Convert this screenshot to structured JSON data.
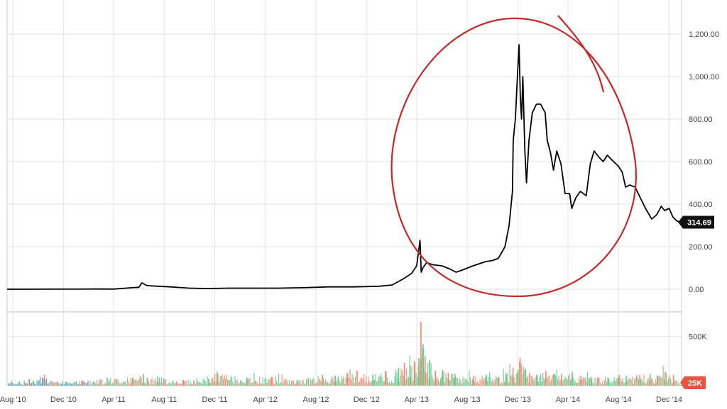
{
  "chart_data": [
    {
      "type": "line",
      "title": "",
      "xlabel": "",
      "ylabel": "",
      "ylim": [
        0,
        1200
      ],
      "grid": true,
      "x_ticks": [
        "Aug '10",
        "Dec '10",
        "Apr '11",
        "Aug '11",
        "Dec '11",
        "Apr '12",
        "Aug '12",
        "Dec '12",
        "Apr '13",
        "Aug '13",
        "Dec '13",
        "Apr '14",
        "Aug '14",
        "Dec '14"
      ],
      "y_ticks": [
        "0.00",
        "200.00",
        "400.00",
        "600.00",
        "800.00",
        "1,000.00",
        "1,200.00"
      ],
      "last_value_label": "314.69",
      "colors": {
        "line": "#000000",
        "last_label_bg": "#111111",
        "annotation": "#c62828"
      },
      "series": [
        {
          "x": [
            "2010-07-18",
            "2010-09-01",
            "2010-11-01",
            "2011-01-01",
            "2011-02-15",
            "2011-04-01",
            "2011-05-15",
            "2011-06-01",
            "2011-06-08",
            "2011-06-20",
            "2011-07-15",
            "2011-08-15",
            "2011-10-01",
            "2011-11-15",
            "2012-01-01",
            "2012-03-01",
            "2012-05-01",
            "2012-07-01",
            "2012-09-01",
            "2012-11-01",
            "2013-01-01",
            "2013-02-01",
            "2013-03-01",
            "2013-03-20",
            "2013-04-01",
            "2013-04-09",
            "2013-04-12",
            "2013-04-16",
            "2013-04-25",
            "2013-05-10",
            "2013-06-01",
            "2013-06-20",
            "2013-07-05",
            "2013-07-20",
            "2013-08-15",
            "2013-09-15",
            "2013-10-01",
            "2013-10-15",
            "2013-10-31",
            "2013-11-10",
            "2013-11-18",
            "2013-11-20",
            "2013-11-25",
            "2013-11-30",
            "2013-12-04",
            "2013-12-07",
            "2013-12-10",
            "2013-12-13",
            "2013-12-18",
            "2013-12-22",
            "2013-12-28",
            "2014-01-05",
            "2014-01-15",
            "2014-01-25",
            "2014-02-05",
            "2014-02-10",
            "2014-02-18",
            "2014-02-25",
            "2014-03-05",
            "2014-03-15",
            "2014-03-25",
            "2014-04-05",
            "2014-04-10",
            "2014-04-20",
            "2014-05-01",
            "2014-05-15",
            "2014-05-25",
            "2014-06-03",
            "2014-06-15",
            "2014-06-25",
            "2014-07-05",
            "2014-07-20",
            "2014-07-31",
            "2014-08-10",
            "2014-08-18",
            "2014-08-28",
            "2014-09-10",
            "2014-09-20",
            "2014-10-05",
            "2014-10-20",
            "2014-11-01",
            "2014-11-12",
            "2014-11-20",
            "2014-12-01",
            "2014-12-10",
            "2014-12-20",
            "2014-12-31"
          ],
          "y": [
            0.05,
            0.06,
            0.2,
            0.3,
            1.0,
            0.8,
            7,
            9,
            30,
            17,
            14,
            11,
            5,
            3,
            5,
            5,
            5,
            7,
            11,
            11,
            14,
            20,
            50,
            75,
            110,
            230,
            80,
            100,
            125,
            115,
            110,
            95,
            80,
            90,
            110,
            130,
            135,
            145,
            200,
            300,
            460,
            700,
            800,
            1000,
            1150,
            900,
            800,
            1000,
            650,
            500,
            700,
            830,
            870,
            870,
            830,
            700,
            640,
            560,
            650,
            590,
            450,
            450,
            380,
            430,
            460,
            440,
            590,
            650,
            620,
            600,
            630,
            600,
            580,
            550,
            480,
            490,
            480,
            440,
            380,
            330,
            350,
            390,
            370,
            380,
            340,
            320,
            315
          ]
        }
      ]
    },
    {
      "type": "bar",
      "title": "",
      "xlabel": "",
      "ylabel": "",
      "ylim": [
        0,
        700000
      ],
      "y_ticks": [
        "500K"
      ],
      "last_value_label": "25K",
      "colors": {
        "up": "#5cc98a",
        "down": "#f08870",
        "early": "#4a90c8",
        "last_label_bg": "#e8543e"
      },
      "series": [
        {
          "name": "",
          "x": [
            "2010-08-15",
            "2010-10-15",
            "2010-11-15",
            "2011-01-15",
            "2011-03-15",
            "2011-05-15",
            "2011-06-10",
            "2011-06-20",
            "2011-07-15",
            "2011-09-15",
            "2011-11-15",
            "2011-12-05",
            "2012-02-15",
            "2012-04-15",
            "2012-06-15",
            "2012-08-15",
            "2012-09-15",
            "2012-10-15",
            "2012-12-15",
            "2013-01-15",
            "2013-02-15",
            "2013-03-01",
            "2013-03-15",
            "2013-03-25",
            "2013-04-05",
            "2013-04-10",
            "2013-04-15",
            "2013-04-20",
            "2013-05-01",
            "2013-05-15",
            "2013-06-01",
            "2013-06-15",
            "2013-07-01",
            "2013-08-15",
            "2013-09-15",
            "2013-10-15",
            "2013-11-01",
            "2013-11-18",
            "2013-11-30",
            "2013-12-05",
            "2013-12-18",
            "2013-12-28",
            "2014-01-15",
            "2014-02-05",
            "2014-02-25",
            "2014-03-15",
            "2014-04-10",
            "2014-05-01",
            "2014-05-25",
            "2014-06-10",
            "2014-07-05",
            "2014-08-01",
            "2014-08-18",
            "2014-09-20",
            "2014-10-15",
            "2014-11-01",
            "2014-11-20",
            "2014-12-10",
            "2014-12-31"
          ],
          "y": [
            40000,
            110000,
            40000,
            50000,
            80000,
            80000,
            120000,
            80000,
            90000,
            60000,
            70000,
            140000,
            80000,
            90000,
            60000,
            110000,
            100000,
            130000,
            110000,
            150000,
            180000,
            230000,
            200000,
            250000,
            280000,
            650000,
            420000,
            300000,
            260000,
            150000,
            160000,
            130000,
            120000,
            100000,
            110000,
            90000,
            130000,
            180000,
            160000,
            280000,
            170000,
            130000,
            110000,
            150000,
            120000,
            120000,
            140000,
            100000,
            90000,
            80000,
            80000,
            110000,
            100000,
            110000,
            120000,
            100000,
            140000,
            110000,
            25000
          ]
        }
      ]
    }
  ]
}
